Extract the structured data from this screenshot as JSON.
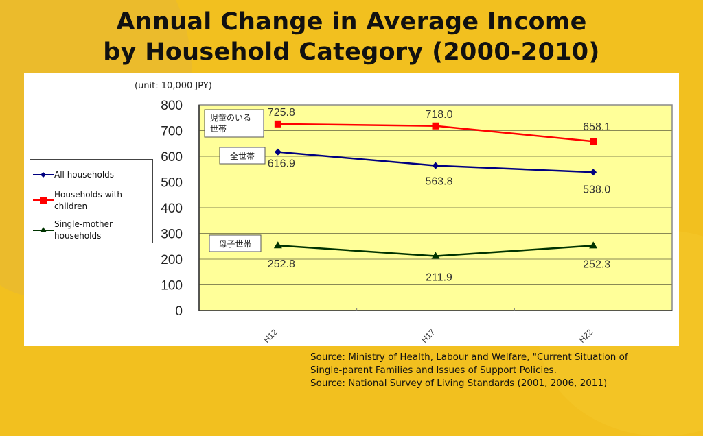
{
  "title": {
    "line1": "Annual Change in Average Income",
    "line2": "by Household Category (2000-2010)"
  },
  "unit_label": "(unit: 10,000 JPY)",
  "legend": {
    "items": [
      {
        "label_line1": "All households",
        "label_line2": "",
        "series": "all"
      },
      {
        "label_line1": "Households with",
        "label_line2": "children",
        "series": "children"
      },
      {
        "label_line1": "Single-mother",
        "label_line2": "households",
        "series": "single_mother"
      }
    ]
  },
  "source": {
    "line1": "Source: Ministry of Health, Labour and Welfare, \"Current Situation of",
    "line2": "Single-parent Families and Issues of Support Policies.",
    "line3": "Source: National Survey of Living Standards (2001, 2006, 2011)"
  },
  "chart_data": {
    "type": "line",
    "title": "Annual Change in Average Income by Household Category (2000-2010)",
    "xlabel": "",
    "ylabel": "(unit: 10,000 JPY)",
    "categories": [
      "H12",
      "H17",
      "H22"
    ],
    "ylim": [
      0,
      800
    ],
    "yticks": [
      0,
      100,
      200,
      300,
      400,
      500,
      600,
      700,
      800
    ],
    "grid": true,
    "legend_position": "left",
    "plot_background": "#ffff99",
    "series": [
      {
        "key": "children",
        "name": "Households with children",
        "jp_label": "児童のいる\n世帯",
        "color": "#ff0000",
        "marker": "square",
        "values": [
          725.8,
          718.0,
          658.1
        ],
        "labels": [
          "725.8",
          "718.0",
          "658.1"
        ]
      },
      {
        "key": "all",
        "name": "All households",
        "jp_label": "全世帯",
        "color": "#000080",
        "marker": "diamond",
        "values": [
          616.9,
          563.8,
          538.0
        ],
        "labels": [
          "616.9",
          "563.8",
          "538.0"
        ]
      },
      {
        "key": "single_mother",
        "name": "Single-mother households",
        "jp_label": "母子世帯",
        "color": "#003300",
        "marker": "triangle",
        "values": [
          252.8,
          211.9,
          252.3
        ],
        "labels": [
          "252.8",
          "211.9",
          "252.3"
        ]
      }
    ]
  }
}
